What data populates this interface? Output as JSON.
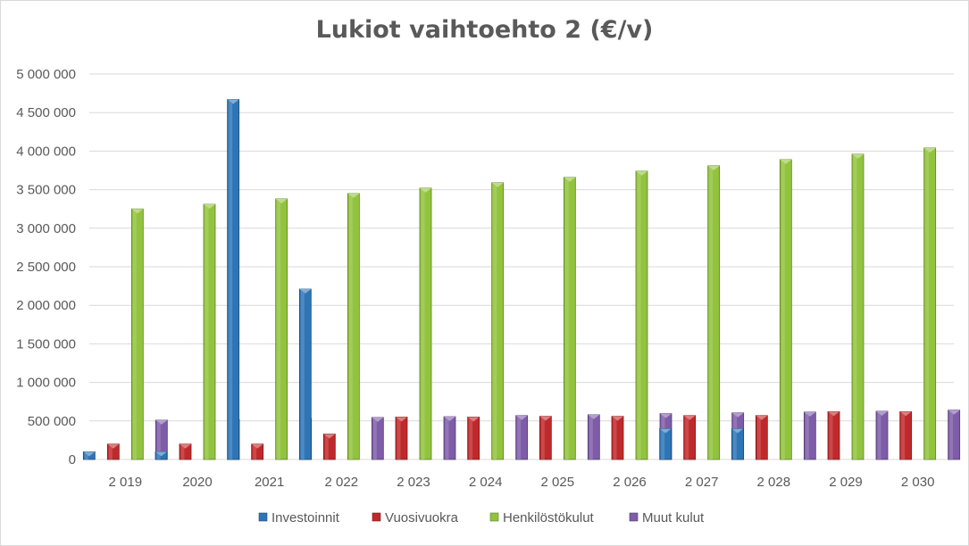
{
  "chart_data": {
    "type": "bar",
    "title": "Lukiot vaihtoehto 2 (€/v)",
    "xlabel": "",
    "ylabel": "",
    "categories": [
      "2 019",
      "2020",
      "2021",
      "2 022",
      "2 023",
      "2 024",
      "2 025",
      "2 026",
      "2 027",
      "2 028",
      "2 029",
      "2 030"
    ],
    "ylim": [
      0,
      5000000
    ],
    "yticks": [
      0,
      500000,
      1000000,
      1500000,
      2000000,
      2500000,
      3000000,
      3500000,
      4000000,
      4500000,
      5000000
    ],
    "ytick_labels": [
      "0",
      "500 000",
      "1 000 000",
      "1 500 000",
      "2 000 000",
      "2 500 000",
      "3 000 000",
      "3 500 000",
      "4 000 000",
      "4 500 000",
      "5 000 000"
    ],
    "grid": true,
    "legend_position": "bottom",
    "series": [
      {
        "name": "Investoinnit",
        "color": "#2e75b6",
        "values": [
          100000,
          100000,
          4670000,
          2210000,
          0,
          0,
          0,
          0,
          400000,
          400000,
          0,
          0
        ]
      },
      {
        "name": "Vuosivuokra",
        "color": "#c0292b",
        "values": [
          200000,
          200000,
          200000,
          330000,
          550000,
          550000,
          560000,
          560000,
          570000,
          570000,
          620000,
          620000
        ]
      },
      {
        "name": "Henkilöstökulut",
        "color": "#92c33e",
        "values": [
          3250000,
          3310000,
          3380000,
          3450000,
          3520000,
          3590000,
          3660000,
          3740000,
          3810000,
          3890000,
          3960000,
          4040000
        ]
      },
      {
        "name": "Muut kulut",
        "color": "#7e5ca8",
        "values": [
          510000,
          520000,
          530000,
          545000,
          555000,
          570000,
          580000,
          595000,
          605000,
          615000,
          625000,
          640000
        ]
      }
    ]
  }
}
